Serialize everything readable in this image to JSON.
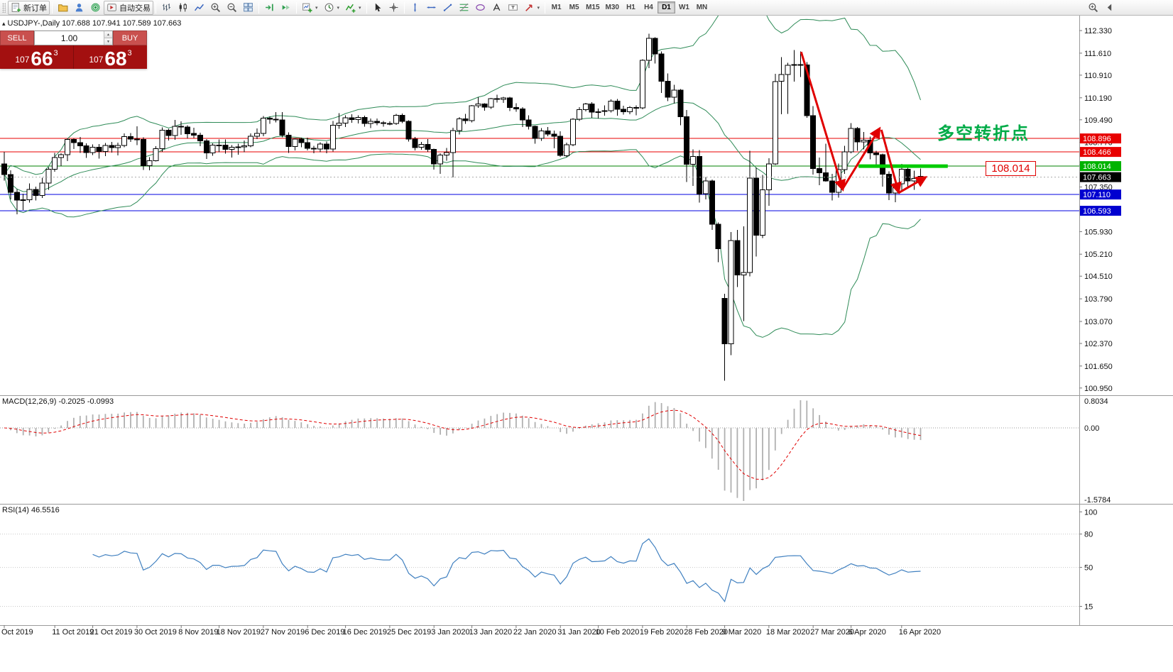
{
  "toolbar": {
    "new_order_label": "新订单",
    "autotrading_label": "自动交易",
    "timeframes": [
      "M1",
      "M5",
      "M15",
      "M30",
      "H1",
      "H4",
      "D1",
      "W1",
      "MN"
    ],
    "active_timeframe": "D1",
    "left_groups": [
      [
        {
          "name": "new-order",
          "icon": "new-order-icon",
          "label_key": "new_order_label",
          "framed": true
        }
      ],
      [
        {
          "name": "profiles",
          "icon": "profiles-icon"
        },
        {
          "name": "account",
          "icon": "account-icon"
        },
        {
          "name": "community",
          "icon": "community-icon"
        },
        {
          "name": "autotrading",
          "icon": "autotrading-icon",
          "label_key": "autotrading_label",
          "framed": true
        }
      ],
      [
        {
          "name": "bar-chart",
          "icon": "bar-chart-icon"
        },
        {
          "name": "candlestick-chart",
          "icon": "candle-chart-icon"
        },
        {
          "name": "line-chart",
          "icon": "line-chart-icon"
        },
        {
          "name": "zoom-in",
          "icon": "zoom-in-icon"
        },
        {
          "name": "zoom-out",
          "icon": "zoom-out-icon"
        },
        {
          "name": "tile-windows",
          "icon": "tile-windows-icon"
        }
      ],
      [
        {
          "name": "chart-shift",
          "icon": "chart-shift-icon"
        },
        {
          "name": "auto-scroll",
          "icon": "auto-scroll-icon"
        }
      ],
      [
        {
          "name": "new-chart",
          "icon": "new-chart-icon",
          "caret": true
        },
        {
          "name": "chart-periods",
          "icon": "period-icon",
          "caret": true
        },
        {
          "name": "indicators-menu",
          "icon": "indicators-icon",
          "caret": true
        }
      ],
      [
        {
          "name": "cursor-tool",
          "icon": "cursor-icon"
        },
        {
          "name": "crosshair-tool",
          "icon": "crosshair-icon"
        }
      ],
      [
        {
          "name": "vertical-line-tool",
          "icon": "vline-icon"
        },
        {
          "name": "horizontal-line-tool",
          "icon": "hline-icon"
        },
        {
          "name": "trendline-tool",
          "icon": "trendline-icon"
        },
        {
          "name": "fibonacci-tool",
          "icon": "fibonacci-icon"
        },
        {
          "name": "shapes-tool",
          "icon": "shapes-icon"
        },
        {
          "name": "text-tool",
          "icon": "text-icon"
        },
        {
          "name": "label-tool",
          "icon": "label-icon"
        },
        {
          "name": "arrows-tool",
          "icon": "arrows-icon",
          "caret": true
        }
      ]
    ],
    "right_icons": [
      {
        "name": "search",
        "icon": "search-icon"
      },
      {
        "name": "collapse-toolbar",
        "icon": "collapse-icon"
      }
    ]
  },
  "symbol_header": "USDJPY-,Daily 107.688 107.941 107.589 107.663",
  "trade_panel": {
    "sell_label": "SELL",
    "buy_label": "BUY",
    "volume": "1.00",
    "sell_prefix": "107",
    "sell_big": "66",
    "sell_sup": "3",
    "buy_prefix": "107",
    "buy_big": "68",
    "buy_sup": "3"
  },
  "annotations": {
    "turning_point": "多空转折点",
    "price_label": "108.014"
  },
  "indicators": {
    "macd_label": "MACD(12,26,9) -0.2025 -0.0993",
    "rsi_label": "RSI(14) 46.5516",
    "macd_scale": [
      "0.8034",
      "0.00",
      "-1.5784"
    ],
    "rsi_scale": [
      [
        "100",
        100
      ],
      [
        "80",
        80
      ],
      [
        "50",
        50
      ],
      [
        "15",
        15
      ]
    ]
  },
  "chart_data": {
    "type": "candlestick",
    "symbol": "USDJPY-",
    "timeframe": "Daily",
    "axis": {
      "price_max": 112.67,
      "price_min": 100.72
    },
    "y_ticks": [
      "112.330",
      "111.610",
      "110.910",
      "110.190",
      "109.490",
      "108.770",
      "108.050",
      "107.350",
      "106.630",
      "105.930",
      "105.210",
      "104.510",
      "103.790",
      "103.070",
      "102.370",
      "101.650",
      "100.950"
    ],
    "x_ticks": [
      [
        "Oct 2019",
        0
      ],
      [
        "11 Oct 2019",
        8
      ],
      [
        "21 Oct 2019",
        14
      ],
      [
        "30 Oct 2019",
        21
      ],
      [
        "8 Nov 2019",
        28
      ],
      [
        "18 Nov 2019",
        34
      ],
      [
        "27 Nov 2019",
        41
      ],
      [
        "6 Dec 2019",
        48
      ],
      [
        "16 Dec 2019",
        54
      ],
      [
        "25 Dec 2019",
        61
      ],
      [
        "3 Jan 2020",
        68
      ],
      [
        "13 Jan 2020",
        74
      ],
      [
        "22 Jan 2020",
        81
      ],
      [
        "31 Jan 2020",
        88
      ],
      [
        "10 Feb 2020",
        94
      ],
      [
        "19 Feb 2020",
        101
      ],
      [
        "28 Feb 2020",
        108
      ],
      [
        "9 Mar 2020",
        114
      ],
      [
        "18 Mar 2020",
        121
      ],
      [
        "27 Mar 2020",
        128
      ],
      [
        "6 Apr 2020",
        134
      ],
      [
        "16 Apr 2020",
        142
      ]
    ],
    "ohlc": [
      [
        108.08,
        108.47,
        107.55,
        107.75
      ],
      [
        107.75,
        107.88,
        106.96,
        107.18
      ],
      [
        107.18,
        107.28,
        106.48,
        106.93
      ],
      [
        106.93,
        107.13,
        106.62,
        106.94
      ],
      [
        106.94,
        107.46,
        106.85,
        107.27
      ],
      [
        107.27,
        107.36,
        106.92,
        107.08
      ],
      [
        107.08,
        107.64,
        107.0,
        107.47
      ],
      [
        107.47,
        107.98,
        107.26,
        107.92
      ],
      [
        107.92,
        108.44,
        107.84,
        108.29
      ],
      [
        108.29,
        108.42,
        108.02,
        108.38
      ],
      [
        108.38,
        108.9,
        108.18,
        108.86
      ],
      [
        108.86,
        108.9,
        108.56,
        108.76
      ],
      [
        108.76,
        108.94,
        108.43,
        108.66
      ],
      [
        108.66,
        108.74,
        108.28,
        108.45
      ],
      [
        108.45,
        108.7,
        108.37,
        108.62
      ],
      [
        108.62,
        108.72,
        108.25,
        108.48
      ],
      [
        108.48,
        108.75,
        108.33,
        108.67
      ],
      [
        108.67,
        108.78,
        108.45,
        108.61
      ],
      [
        108.61,
        108.76,
        108.36,
        108.67
      ],
      [
        108.67,
        109.05,
        108.62,
        108.95
      ],
      [
        108.95,
        109.07,
        108.78,
        108.88
      ],
      [
        108.88,
        109.28,
        108.68,
        108.86
      ],
      [
        108.86,
        108.93,
        107.89,
        108.03
      ],
      [
        108.03,
        108.3,
        107.88,
        108.19
      ],
      [
        108.19,
        108.65,
        108.16,
        108.57
      ],
      [
        108.57,
        109.25,
        108.47,
        109.16
      ],
      [
        109.16,
        109.2,
        108.83,
        108.99
      ],
      [
        108.99,
        109.49,
        108.85,
        109.28
      ],
      [
        109.28,
        109.44,
        109.01,
        109.26
      ],
      [
        109.26,
        109.31,
        108.9,
        109.05
      ],
      [
        109.05,
        109.24,
        108.91,
        109.0
      ],
      [
        109.0,
        109.08,
        108.65,
        108.82
      ],
      [
        108.82,
        108.88,
        108.24,
        108.43
      ],
      [
        108.43,
        108.74,
        108.34,
        108.68
      ],
      [
        108.68,
        108.86,
        108.46,
        108.68
      ],
      [
        108.68,
        108.86,
        108.41,
        108.55
      ],
      [
        108.55,
        108.68,
        108.29,
        108.62
      ],
      [
        108.62,
        108.73,
        108.38,
        108.63
      ],
      [
        108.63,
        108.83,
        108.46,
        108.66
      ],
      [
        108.66,
        109.05,
        108.61,
        108.96
      ],
      [
        108.96,
        109.21,
        108.88,
        109.06
      ],
      [
        109.06,
        109.61,
        108.97,
        109.54
      ],
      [
        109.54,
        109.6,
        109.36,
        109.51
      ],
      [
        109.51,
        109.73,
        109.41,
        109.49
      ],
      [
        109.49,
        109.73,
        108.93,
        109.0
      ],
      [
        109.0,
        109.09,
        108.43,
        108.64
      ],
      [
        108.64,
        108.91,
        108.51,
        108.88
      ],
      [
        108.88,
        108.92,
        108.62,
        108.76
      ],
      [
        108.76,
        108.92,
        108.51,
        108.58
      ],
      [
        108.58,
        108.66,
        108.42,
        108.56
      ],
      [
        108.56,
        108.77,
        108.46,
        108.72
      ],
      [
        108.72,
        108.8,
        108.42,
        108.56
      ],
      [
        108.56,
        109.45,
        108.48,
        109.32
      ],
      [
        109.32,
        109.7,
        109.2,
        109.38
      ],
      [
        109.38,
        109.63,
        109.26,
        109.55
      ],
      [
        109.55,
        109.66,
        109.4,
        109.5
      ],
      [
        109.5,
        109.63,
        109.37,
        109.56
      ],
      [
        109.56,
        109.62,
        109.27,
        109.37
      ],
      [
        109.37,
        109.53,
        109.23,
        109.44
      ],
      [
        109.44,
        109.53,
        109.31,
        109.39
      ],
      [
        109.39,
        109.45,
        109.27,
        109.37
      ],
      [
        109.37,
        109.44,
        109.31,
        109.37
      ],
      [
        109.37,
        109.68,
        109.33,
        109.63
      ],
      [
        109.63,
        109.69,
        109.38,
        109.44
      ],
      [
        109.44,
        109.47,
        108.8,
        108.88
      ],
      [
        108.88,
        108.94,
        108.51,
        108.61
      ],
      [
        108.61,
        108.78,
        108.54,
        108.7
      ],
      [
        108.7,
        108.87,
        108.47,
        108.55
      ],
      [
        108.55,
        108.57,
        107.9,
        108.09
      ],
      [
        108.09,
        108.42,
        107.77,
        108.37
      ],
      [
        108.37,
        108.59,
        108.19,
        108.45
      ],
      [
        108.45,
        109.24,
        107.65,
        109.15
      ],
      [
        109.15,
        109.58,
        109.02,
        109.52
      ],
      [
        109.52,
        109.68,
        109.36,
        109.46
      ],
      [
        109.46,
        109.96,
        109.41,
        109.94
      ],
      [
        109.94,
        110.21,
        109.87,
        109.99
      ],
      [
        109.99,
        110.02,
        109.78,
        109.89
      ],
      [
        109.89,
        110.18,
        109.83,
        110.16
      ],
      [
        110.16,
        110.29,
        110.04,
        110.14
      ],
      [
        110.14,
        110.22,
        110.03,
        110.19
      ],
      [
        110.19,
        110.22,
        109.77,
        109.88
      ],
      [
        109.88,
        110.02,
        109.74,
        109.84
      ],
      [
        109.84,
        109.89,
        109.26,
        109.49
      ],
      [
        109.49,
        109.63,
        109.18,
        109.28
      ],
      [
        109.28,
        109.3,
        108.73,
        108.9
      ],
      [
        108.9,
        109.22,
        108.82,
        109.14
      ],
      [
        109.14,
        109.26,
        108.96,
        109.03
      ],
      [
        109.03,
        109.15,
        108.58,
        108.96
      ],
      [
        108.96,
        109.12,
        108.31,
        108.35
      ],
      [
        108.35,
        108.76,
        108.3,
        108.69
      ],
      [
        108.69,
        109.54,
        108.65,
        109.51
      ],
      [
        109.51,
        109.89,
        109.45,
        109.81
      ],
      [
        109.81,
        110.03,
        109.76,
        109.99
      ],
      [
        109.99,
        110.05,
        109.55,
        109.73
      ],
      [
        109.73,
        109.85,
        109.53,
        109.75
      ],
      [
        109.75,
        109.95,
        109.62,
        109.78
      ],
      [
        109.78,
        110.14,
        109.72,
        110.08
      ],
      [
        110.08,
        110.15,
        109.62,
        109.82
      ],
      [
        109.82,
        109.94,
        109.65,
        109.74
      ],
      [
        109.74,
        109.92,
        109.66,
        109.88
      ],
      [
        109.88,
        109.95,
        109.63,
        109.87
      ],
      [
        109.87,
        111.42,
        109.82,
        111.38
      ],
      [
        111.38,
        112.23,
        111.13,
        112.08
      ],
      [
        112.08,
        112.12,
        111.28,
        111.59
      ],
      [
        111.59,
        111.67,
        110.34,
        110.72
      ],
      [
        110.72,
        110.97,
        110.08,
        110.21
      ],
      [
        110.21,
        110.6,
        110.0,
        110.43
      ],
      [
        110.43,
        110.47,
        109.32,
        109.59
      ],
      [
        109.59,
        109.8,
        107.51,
        108.07
      ],
      [
        108.07,
        108.55,
        107.38,
        108.32
      ],
      [
        108.32,
        108.53,
        106.85,
        107.13
      ],
      [
        107.13,
        107.67,
        106.95,
        107.54
      ],
      [
        107.54,
        107.59,
        105.98,
        106.16
      ],
      [
        106.16,
        106.22,
        104.96,
        105.39
      ],
      [
        103.8,
        103.95,
        101.18,
        102.36
      ],
      [
        102.36,
        105.92,
        102.0,
        105.64
      ],
      [
        105.64,
        105.98,
        104.17,
        104.55
      ],
      [
        104.55,
        106.1,
        103.08,
        104.63
      ],
      [
        104.63,
        108.5,
        104.5,
        107.63
      ],
      [
        107.63,
        107.97,
        105.14,
        105.81
      ],
      [
        105.81,
        107.73,
        105.72,
        107.26
      ],
      [
        107.26,
        108.27,
        106.75,
        108.08
      ],
      [
        108.08,
        110.95,
        108.05,
        110.71
      ],
      [
        110.71,
        111.48,
        109.66,
        110.93
      ],
      [
        110.93,
        111.3,
        109.68,
        111.22
      ],
      [
        111.22,
        111.71,
        110.71,
        111.25
      ],
      [
        111.25,
        111.66,
        110.85,
        111.24
      ],
      [
        111.24,
        111.33,
        109.55,
        109.62
      ],
      [
        109.62,
        109.92,
        107.74,
        107.94
      ],
      [
        107.94,
        108.29,
        107.41,
        107.8
      ],
      [
        107.8,
        108.73,
        107.52,
        107.54
      ],
      [
        107.54,
        107.77,
        106.92,
        107.18
      ],
      [
        107.18,
        108.09,
        107.01,
        107.9
      ],
      [
        107.9,
        108.66,
        107.77,
        108.47
      ],
      [
        108.47,
        109.38,
        108.42,
        109.21
      ],
      [
        109.21,
        109.26,
        108.5,
        108.78
      ],
      [
        108.78,
        109.1,
        108.55,
        108.84
      ],
      [
        108.84,
        108.95,
        108.23,
        108.43
      ],
      [
        108.43,
        108.5,
        107.98,
        108.38
      ],
      [
        108.38,
        108.41,
        107.36,
        107.76
      ],
      [
        107.76,
        107.85,
        106.93,
        107.16
      ],
      [
        107.16,
        107.6,
        106.87,
        107.45
      ],
      [
        107.45,
        108.08,
        107.19,
        107.92
      ],
      [
        107.92,
        108.05,
        107.33,
        107.54
      ],
      [
        107.54,
        107.87,
        107.26,
        107.62
      ],
      [
        107.688,
        107.941,
        107.589,
        107.663
      ]
    ],
    "bollinger": {
      "period": 20,
      "deviation": 2,
      "color": "#2e8b57"
    },
    "hlines": [
      {
        "price": 108.896,
        "label": "108.896",
        "color": "#e80000",
        "tag_bg": "#e80000"
      },
      {
        "price": 108.466,
        "label": "108.466",
        "color": "#e80000",
        "tag_bg": "#e80000"
      },
      {
        "price": 108.014,
        "label": "108.014",
        "color": "#008000",
        "tag_bg": "#00b300"
      },
      {
        "price": 107.11,
        "label": "107.110",
        "color": "#0000e0",
        "tag_bg": "#0000d0"
      },
      {
        "price": 106.593,
        "label": "106.593",
        "color": "#0000e0",
        "tag_bg": "#0000d0"
      }
    ],
    "current_price": {
      "value": 107.663,
      "label": "107.663",
      "tag_bg": "#000000"
    },
    "support_segment": {
      "price": 108.014,
      "from_index": 135.2,
      "to_index": 149.3,
      "color": "#00cc00"
    },
    "trend_arrows": {
      "color": "#e00000",
      "segments": [
        [
          126.1,
          111.65,
          132.7,
          107.27
        ],
        [
          132.7,
          107.3,
          138.5,
          109.21
        ],
        [
          138.8,
          109.17,
          141.5,
          107.19
        ],
        [
          141.5,
          107.16,
          145.8,
          107.66
        ]
      ]
    },
    "macd": {
      "fast": 12,
      "slow": 26,
      "signal": 9,
      "histogram_color": "#b0b0b0",
      "signal_color": "#e00000"
    },
    "rsi": {
      "period": 14,
      "color": "#4080c0",
      "levels": [
        80,
        50,
        15
      ]
    }
  }
}
